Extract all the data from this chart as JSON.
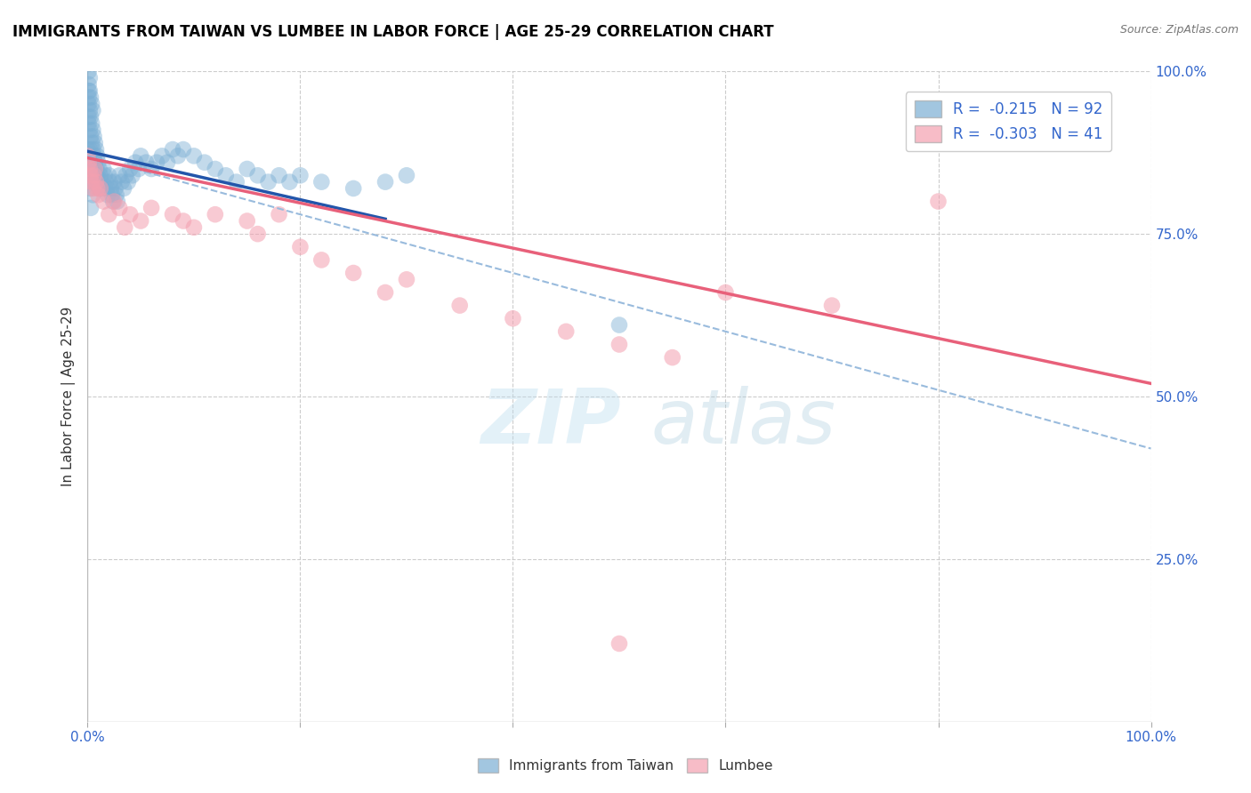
{
  "title": "IMMIGRANTS FROM TAIWAN VS LUMBEE IN LABOR FORCE | AGE 25-29 CORRELATION CHART",
  "source": "Source: ZipAtlas.com",
  "ylabel": "In Labor Force | Age 25-29",
  "xlim": [
    0,
    1.0
  ],
  "ylim": [
    0,
    1.0
  ],
  "blue_R": -0.215,
  "blue_N": 92,
  "pink_R": -0.303,
  "pink_N": 41,
  "blue_color": "#7BAFD4",
  "pink_color": "#F4A0B0",
  "blue_line_color": "#2255AA",
  "pink_line_color": "#E8607A",
  "dashed_line_color": "#99BBDD",
  "tick_color": "#3366CC",
  "grid_color": "#CCCCCC",
  "blue_points_x": [
    0.0,
    0.001,
    0.001,
    0.001,
    0.001,
    0.002,
    0.002,
    0.002,
    0.002,
    0.003,
    0.003,
    0.003,
    0.004,
    0.004,
    0.004,
    0.005,
    0.005,
    0.005,
    0.006,
    0.006,
    0.007,
    0.007,
    0.008,
    0.008,
    0.009,
    0.009,
    0.01,
    0.01,
    0.011,
    0.011,
    0.012,
    0.013,
    0.014,
    0.015,
    0.016,
    0.017,
    0.018,
    0.019,
    0.02,
    0.021,
    0.022,
    0.023,
    0.024,
    0.025,
    0.026,
    0.027,
    0.028,
    0.03,
    0.032,
    0.034,
    0.036,
    0.038,
    0.04,
    0.042,
    0.045,
    0.048,
    0.05,
    0.055,
    0.06,
    0.065,
    0.07,
    0.075,
    0.08,
    0.085,
    0.09,
    0.1,
    0.11,
    0.12,
    0.13,
    0.14,
    0.15,
    0.16,
    0.17,
    0.18,
    0.19,
    0.2,
    0.22,
    0.25,
    0.28,
    0.3,
    0.001,
    0.001,
    0.001,
    0.002,
    0.002,
    0.003,
    0.003,
    0.004,
    0.005,
    0.006,
    0.007,
    0.5
  ],
  "blue_points_y": [
    0.88,
    0.92,
    0.95,
    0.98,
    1.0,
    0.91,
    0.94,
    0.97,
    0.99,
    0.9,
    0.93,
    0.96,
    0.89,
    0.92,
    0.95,
    0.88,
    0.91,
    0.94,
    0.87,
    0.9,
    0.86,
    0.89,
    0.85,
    0.88,
    0.84,
    0.87,
    0.83,
    0.86,
    0.82,
    0.85,
    0.84,
    0.83,
    0.82,
    0.85,
    0.84,
    0.83,
    0.82,
    0.81,
    0.84,
    0.83,
    0.82,
    0.81,
    0.8,
    0.83,
    0.82,
    0.81,
    0.8,
    0.84,
    0.83,
    0.82,
    0.84,
    0.83,
    0.85,
    0.84,
    0.86,
    0.85,
    0.87,
    0.86,
    0.85,
    0.86,
    0.87,
    0.86,
    0.88,
    0.87,
    0.88,
    0.87,
    0.86,
    0.85,
    0.84,
    0.83,
    0.85,
    0.84,
    0.83,
    0.84,
    0.83,
    0.84,
    0.83,
    0.82,
    0.83,
    0.84,
    0.96,
    0.93,
    0.97,
    0.88,
    0.85,
    0.82,
    0.79,
    0.84,
    0.81,
    0.83,
    0.86,
    0.61
  ],
  "pink_points_x": [
    0.0,
    0.001,
    0.002,
    0.003,
    0.004,
    0.005,
    0.006,
    0.007,
    0.008,
    0.009,
    0.01,
    0.012,
    0.015,
    0.02,
    0.025,
    0.03,
    0.035,
    0.04,
    0.05,
    0.06,
    0.08,
    0.09,
    0.1,
    0.12,
    0.15,
    0.16,
    0.18,
    0.2,
    0.22,
    0.25,
    0.28,
    0.3,
    0.35,
    0.4,
    0.45,
    0.5,
    0.55,
    0.6,
    0.7,
    0.8,
    0.5
  ],
  "pink_points_y": [
    0.87,
    0.86,
    0.85,
    0.84,
    0.83,
    0.82,
    0.84,
    0.85,
    0.83,
    0.82,
    0.81,
    0.82,
    0.8,
    0.78,
    0.8,
    0.79,
    0.76,
    0.78,
    0.77,
    0.79,
    0.78,
    0.77,
    0.76,
    0.78,
    0.77,
    0.75,
    0.78,
    0.73,
    0.71,
    0.69,
    0.66,
    0.68,
    0.64,
    0.62,
    0.6,
    0.58,
    0.56,
    0.66,
    0.64,
    0.8,
    0.12
  ],
  "blue_line_x0": 0.0,
  "blue_line_y0": 0.877,
  "blue_line_x1": 0.28,
  "blue_line_y1": 0.773,
  "pink_line_x0": 0.0,
  "pink_line_y0": 0.867,
  "pink_line_x1": 1.0,
  "pink_line_y1": 0.52,
  "dashed_line_x0": 0.0,
  "dashed_line_y0": 0.87,
  "dashed_line_x1": 1.0,
  "dashed_line_y1": 0.42
}
